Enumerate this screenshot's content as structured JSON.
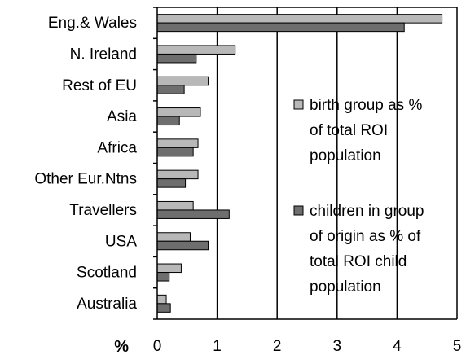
{
  "chart_data": {
    "type": "bar",
    "orientation": "horizontal",
    "categories": [
      "Eng.& Wales",
      "N. Ireland",
      "Rest of EU",
      "Asia",
      "Africa",
      "Other Eur.Ntns",
      "Travellers",
      "USA",
      "Scotland",
      "Australia"
    ],
    "series": [
      {
        "name": "birth group as % of total ROI population",
        "name_lines": [
          "birth group as %",
          "of total ROI",
          "population"
        ],
        "color": "#b8b8b8",
        "values": [
          4.75,
          1.3,
          0.85,
          0.72,
          0.68,
          0.68,
          0.6,
          0.55,
          0.4,
          0.15
        ]
      },
      {
        "name": "children in group of origin as % of total ROI child population",
        "name_lines": [
          "children in group",
          "of origin as % of",
          "total ROI child",
          "population"
        ],
        "color": "#6e6e6e",
        "values": [
          4.12,
          0.65,
          0.45,
          0.37,
          0.6,
          0.47,
          1.2,
          0.85,
          0.2,
          0.22
        ]
      }
    ],
    "xlabel": "%",
    "xlim": [
      0,
      5
    ],
    "xticks": [
      "0",
      "1",
      "2",
      "3",
      "4",
      "5"
    ],
    "grid": true,
    "legend_position": "right"
  }
}
